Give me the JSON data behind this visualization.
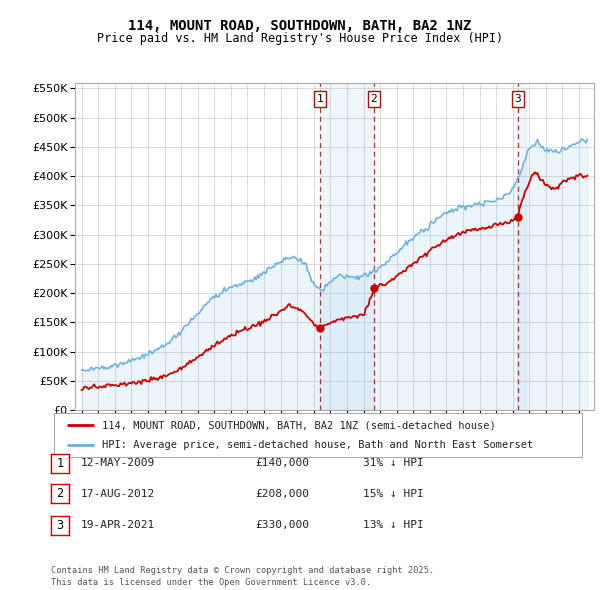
{
  "title": "114, MOUNT ROAD, SOUTHDOWN, BATH, BA2 1NZ",
  "subtitle": "Price paid vs. HM Land Registry's House Price Index (HPI)",
  "legend_line1": "114, MOUNT ROAD, SOUTHDOWN, BATH, BA2 1NZ (semi-detached house)",
  "legend_line2": "HPI: Average price, semi-detached house, Bath and North East Somerset",
  "footnote": "Contains HM Land Registry data © Crown copyright and database right 2025.\nThis data is licensed under the Open Government Licence v3.0.",
  "transactions": [
    {
      "num": 1,
      "date": "12-MAY-2009",
      "price": 140000,
      "pct": "31%",
      "dir": "↓",
      "year_x": 2009.36
    },
    {
      "num": 2,
      "date": "17-AUG-2012",
      "price": 208000,
      "pct": "15%",
      "dir": "↓",
      "year_x": 2012.63
    },
    {
      "num": 3,
      "date": "19-APR-2021",
      "price": 330000,
      "pct": "13%",
      "dir": "↓",
      "year_x": 2021.3
    }
  ],
  "hpi_color": "#6ab0de",
  "price_color": "#cc0000",
  "background_color": "#ffffff",
  "grid_color": "#cccccc",
  "ylim": [
    0,
    560000
  ],
  "xlim_start": 1994.6,
  "xlim_end": 2025.9
}
